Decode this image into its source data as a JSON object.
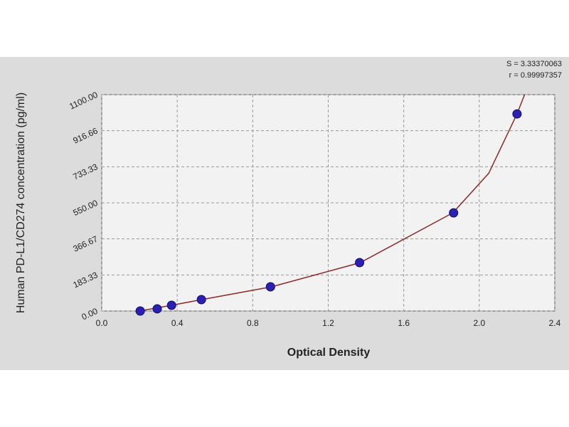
{
  "chart_data": {
    "type": "scatter",
    "x_label": "Optical Density",
    "y_label": "Human PD-L1/CD274 concentration (pg/ml)",
    "annotations": [
      "S = 3.33370063",
      "r = 0.99997357"
    ],
    "xlim": [
      0,
      2.4
    ],
    "xticks": [
      {
        "value": 0,
        "label": "0.0"
      },
      0.4,
      0.8,
      1.2,
      1.6,
      {
        "value": 2,
        "label": "2.0"
      },
      2.4
    ],
    "ylim": [
      0,
      1100
    ],
    "yticks": [
      {
        "value": 0,
        "label": "0.00"
      },
      183.33,
      366.67,
      {
        "value": 550,
        "label": "550.00"
      },
      733.33,
      916.66,
      {
        "value": 1100,
        "label": "1100.00"
      }
    ],
    "grid": true,
    "series": [
      {
        "kind": "points",
        "color": "#2b1fb5",
        "x": [
          0.204,
          0.294,
          0.37,
          0.528,
          0.894,
          1.366,
          1.864,
          2.2
        ],
        "values": [
          0,
          11,
          29,
          58,
          123,
          246,
          499,
          1002
        ]
      },
      {
        "kind": "curve",
        "color": "#8b2a2a",
        "x": [
          0.2,
          0.37,
          0.53,
          0.9,
          1.37,
          1.86,
          2.05,
          2.2,
          2.24
        ],
        "values": [
          0,
          29,
          58,
          123,
          246,
          499,
          700,
          1002,
          1100
        ]
      }
    ]
  }
}
